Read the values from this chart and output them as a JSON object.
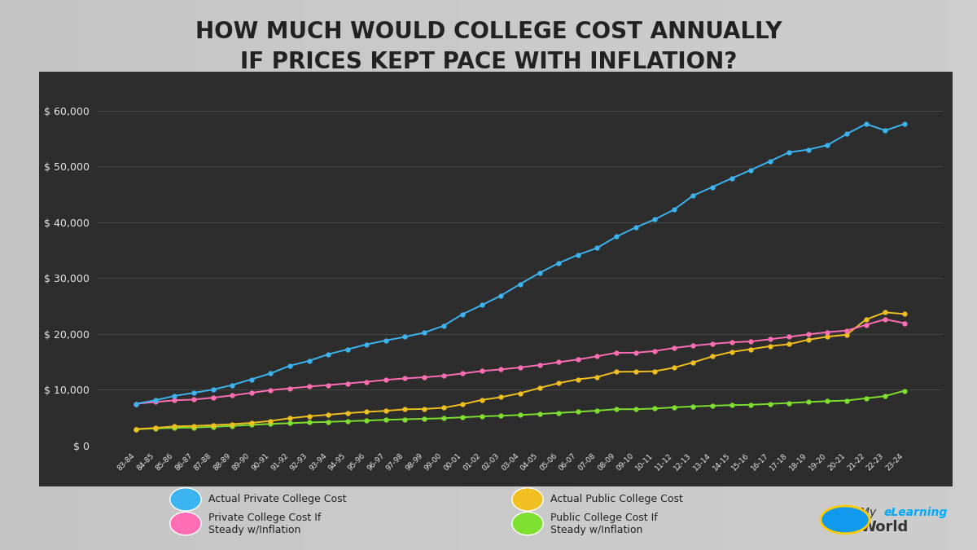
{
  "title": "HOW MUCH WOULD COLLEGE COST ANNUALLY\nIF PRICES KEPT PACE WITH INFLATION?",
  "x_labels": [
    "83-84",
    "84-85",
    "85-86",
    "86-87",
    "87-88",
    "88-89",
    "89-90",
    "90-91",
    "91-92",
    "92-93",
    "93-94",
    "94-95",
    "95-96",
    "96-97",
    "97-98",
    "98-99",
    "99-00",
    "00-01",
    "01-02",
    "02-03",
    "03-04",
    "04-05",
    "05-06",
    "06-07",
    "07-08",
    "08-09",
    "09-10",
    "10-11",
    "11-12",
    "12-13",
    "13-14",
    "14-15",
    "15-16",
    "16-17",
    "17-18",
    "18-19",
    "19-20",
    "20-21",
    "21-22",
    "22-23",
    "23-24"
  ],
  "actual_private": [
    7475,
    8100,
    8885,
    9429,
    10017,
    10818,
    11849,
    12910,
    14277,
    15157,
    16329,
    17208,
    18098,
    18804,
    19451,
    20213,
    21424,
    23522,
    25144,
    26854,
    28916,
    30898,
    32663,
    34132,
    35374,
    37390,
    39028,
    40476,
    42224,
    44750,
    46272,
    47831,
    49320,
    50900,
    52500,
    52990,
    53790,
    55800,
    57570,
    56410,
    57570
  ],
  "private_inflation": [
    7475,
    7790,
    8090,
    8230,
    8560,
    8960,
    9430,
    9900,
    10230,
    10550,
    10820,
    11110,
    11410,
    11750,
    12020,
    12220,
    12480,
    12900,
    13340,
    13620,
    13980,
    14410,
    14920,
    15400,
    15970,
    16610,
    16610,
    16910,
    17460,
    17880,
    18200,
    18480,
    18630,
    19020,
    19450,
    19900,
    20300,
    20580,
    21600,
    22600,
    21900
  ],
  "actual_public": [
    2924,
    3155,
    3425,
    3501,
    3649,
    3822,
    4050,
    4400,
    4880,
    5243,
    5504,
    5796,
    6024,
    6212,
    6480,
    6540,
    6750,
    7380,
    8160,
    8655,
    9367,
    10300,
    11176,
    11839,
    12260,
    13200,
    13218,
    13297,
    13929,
    14880,
    15942,
    16757,
    17237,
    17785,
    18143,
    18943,
    19490,
    19840,
    22560,
    23840,
    23550
  ],
  "public_inflation": [
    2924,
    3048,
    3163,
    3218,
    3348,
    3505,
    3689,
    3875,
    4000,
    4129,
    4233,
    4347,
    4464,
    4598,
    4701,
    4779,
    4882,
    5048,
    5219,
    5328,
    5468,
    5638,
    5837,
    6024,
    6250,
    6500,
    6500,
    6620,
    6830,
    6994,
    7120,
    7231,
    7288,
    7445,
    7611,
    7789,
    7943,
    8055,
    8454,
    8850,
    9800
  ],
  "colors": {
    "actual_private": "#3cb4f0",
    "private_inflation": "#ff6eb4",
    "actual_public": "#f0c020",
    "public_inflation": "#80e030",
    "panel_bg": "#2d2d2d",
    "panel_bg2": "#383838",
    "text_white": "#e8e8e8",
    "grid": "#555555",
    "title_text": "#222222",
    "bg_light": "#c8c8c8"
  },
  "ylim": [
    0,
    65000
  ],
  "yticks": [
    0,
    10000,
    20000,
    30000,
    40000,
    50000,
    60000
  ],
  "legend": [
    {
      "label": "Actual Private College Cost",
      "color": "#3cb4f0",
      "col": 0
    },
    {
      "label": "Private College Cost If\nSteady w/Inflation",
      "color": "#ff6eb4",
      "col": 0
    },
    {
      "label": "Actual Public College Cost",
      "color": "#f0c020",
      "col": 1
    },
    {
      "label": "Public College Cost If\nSteady w/Inflation",
      "color": "#80e030",
      "col": 1
    }
  ]
}
